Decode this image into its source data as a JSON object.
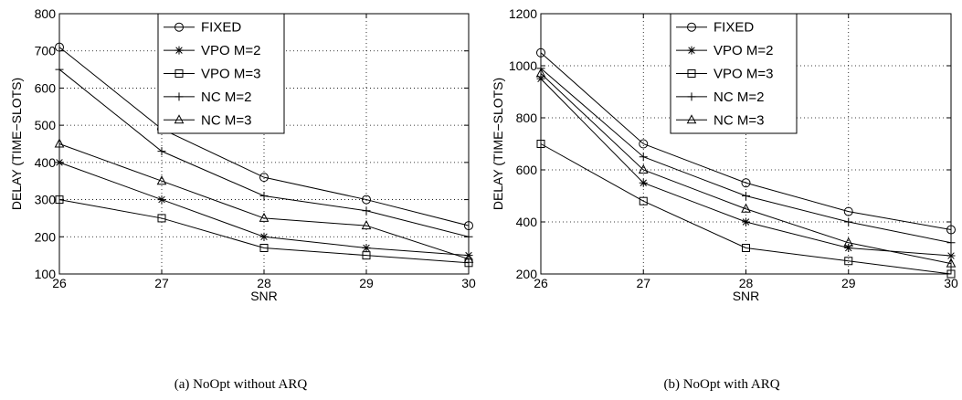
{
  "chart_data": [
    {
      "type": "line",
      "caption": "(a)  NoOpt without ARQ",
      "xlabel": "SNR",
      "ylabel": "DELAY (TIME−SLOTS)",
      "x": [
        26,
        27,
        28,
        29,
        30
      ],
      "xlim": [
        26,
        30
      ],
      "ylim": [
        100,
        800
      ],
      "xticks": [
        26,
        27,
        28,
        29,
        30
      ],
      "yticks": [
        100,
        200,
        300,
        400,
        500,
        600,
        700,
        800
      ],
      "grid": true,
      "legend_position": "top-center",
      "series": [
        {
          "name": "FIXED",
          "marker": "circle",
          "values": [
            710,
            490,
            360,
            300,
            230
          ]
        },
        {
          "name": "VPO M=2",
          "marker": "star",
          "values": [
            400,
            300,
            200,
            170,
            150
          ]
        },
        {
          "name": "VPO M=3",
          "marker": "square",
          "values": [
            300,
            250,
            170,
            150,
            130
          ]
        },
        {
          "name": "NC M=2",
          "marker": "plus",
          "values": [
            650,
            430,
            310,
            270,
            200
          ]
        },
        {
          "name": "NC M=3",
          "marker": "triangle",
          "values": [
            450,
            350,
            250,
            230,
            140
          ]
        }
      ]
    },
    {
      "type": "line",
      "caption": "(b)  NoOpt with ARQ",
      "xlabel": "SNR",
      "ylabel": "DELAY (TIME−SLOTS)",
      "x": [
        26,
        27,
        28,
        29,
        30
      ],
      "xlim": [
        26,
        30
      ],
      "ylim": [
        200,
        1200
      ],
      "xticks": [
        26,
        27,
        28,
        29,
        30
      ],
      "yticks": [
        200,
        400,
        600,
        800,
        1000,
        1200
      ],
      "grid": true,
      "legend_position": "top-center",
      "series": [
        {
          "name": "FIXED",
          "marker": "circle",
          "values": [
            1050,
            700,
            550,
            440,
            370
          ]
        },
        {
          "name": "VPO M=2",
          "marker": "star",
          "values": [
            950,
            550,
            400,
            300,
            270
          ]
        },
        {
          "name": "VPO M=3",
          "marker": "square",
          "values": [
            700,
            480,
            300,
            250,
            200
          ]
        },
        {
          "name": "NC M=2",
          "marker": "plus",
          "values": [
            990,
            650,
            500,
            400,
            320
          ]
        },
        {
          "name": "NC M=3",
          "marker": "triangle",
          "values": [
            970,
            600,
            450,
            320,
            240
          ]
        }
      ]
    }
  ]
}
